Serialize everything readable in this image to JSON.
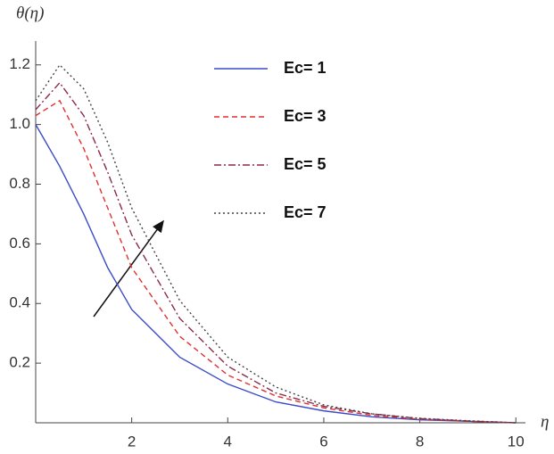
{
  "chart_data": {
    "type": "line",
    "x_label": "η",
    "y_label": "θ(η)",
    "x": [
      0,
      0.5,
      1,
      1.5,
      2,
      3,
      4,
      5,
      6,
      7,
      8,
      9,
      10
    ],
    "series": [
      {
        "name": "Ec= 1",
        "color": "#3a4bc8",
        "dash": "solid",
        "values": [
          1.0,
          0.86,
          0.7,
          0.52,
          0.38,
          0.22,
          0.13,
          0.07,
          0.04,
          0.02,
          0.01,
          0.005,
          0
        ]
      },
      {
        "name": "Ec= 3",
        "color": "#e03030",
        "dash": "dashed",
        "values": [
          1.03,
          1.08,
          0.92,
          0.72,
          0.52,
          0.29,
          0.16,
          0.09,
          0.05,
          0.025,
          0.012,
          0.005,
          0
        ]
      },
      {
        "name": "Ec= 5",
        "color": "#8b2a4a",
        "dash": "dashdot",
        "values": [
          1.05,
          1.14,
          1.03,
          0.84,
          0.63,
          0.35,
          0.19,
          0.1,
          0.055,
          0.03,
          0.014,
          0.006,
          0
        ]
      },
      {
        "name": "Ec= 7",
        "color": "#444444",
        "dash": "dotted",
        "values": [
          1.08,
          1.2,
          1.12,
          0.94,
          0.72,
          0.41,
          0.22,
          0.12,
          0.06,
          0.03,
          0.015,
          0.007,
          0
        ]
      }
    ],
    "xlim": [
      0,
      10.2
    ],
    "ylim": [
      0,
      1.28
    ],
    "xticks": [
      2,
      4,
      6,
      8,
      10
    ],
    "yticks": [
      0.2,
      0.4,
      0.6,
      0.8,
      {
        "value": 1.0,
        "label": "1.0"
      },
      1.2
    ],
    "grid": false
  }
}
